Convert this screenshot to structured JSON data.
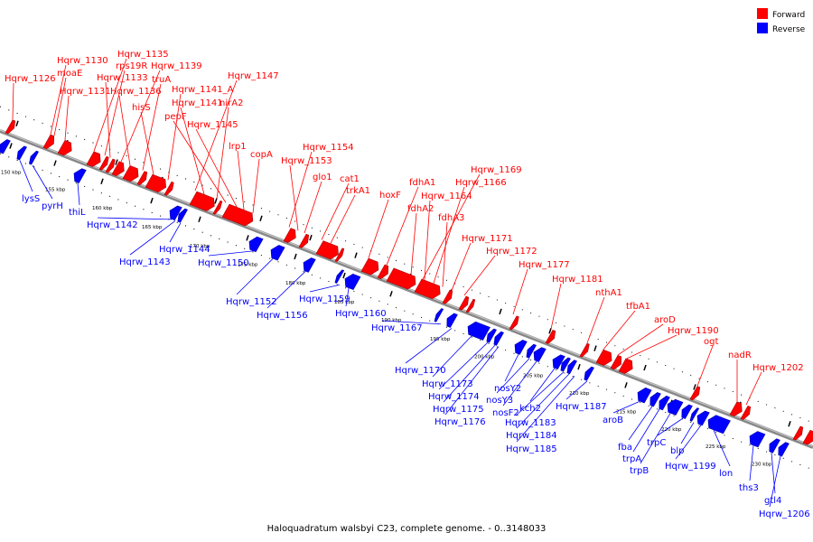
{
  "caption": "Haloquadratum walsbyi C23, complete genome. - 0..3148033",
  "legend": [
    {
      "label": "Forward",
      "color": "#ff0000"
    },
    {
      "label": "Reverse",
      "color": "#0000ff"
    }
  ],
  "colors": {
    "forward": "#ff0000",
    "reverse": "#0000ff",
    "backbone": "#888888"
  },
  "ticks": [
    "150 kbp",
    "155 kbp",
    "160 kbp",
    "165 kbp",
    "170 kbp",
    "175 kbp",
    "180 kbp",
    "185 kbp",
    "190 kbp",
    "195 kbp",
    "200 kbp",
    "205 kbp",
    "210 kbp",
    "215 kbp",
    "220 kbp",
    "225 kbp",
    "230 kbp"
  ],
  "forward_labels": [
    "Hqrw_1126",
    "Hqrw_1130",
    "moaE",
    "Hqrw_1131",
    "Hqrw_1135",
    "rps19R",
    "Hqrw_1133",
    "Hqrw_1139",
    "Hqrw_1136",
    "truA",
    "hisS",
    "Hqrw_1141_A",
    "Hqrw_1147",
    "Hqrw_1141",
    "nirA2",
    "pepF",
    "Hqrw_1145",
    "lrp1",
    "copA",
    "Hqrw_1154",
    "Hqrw_1153",
    "glo1",
    "cat1",
    "trkA1",
    "hoxF",
    "fdhA1",
    "Hqrw_1169",
    "Hqrw_1166",
    "Hqrw_1164",
    "fdhA2",
    "fdhA3",
    "Hqrw_1171",
    "Hqrw_1172",
    "Hqrw_1177",
    "Hqrw_1181",
    "nthA1",
    "tfbA1",
    "aroD",
    "Hqrw_1190",
    "ogt",
    "nadR",
    "Hqrw_1202"
  ],
  "reverse_labels": [
    "lysS",
    "pyrH",
    "thiL",
    "Hqrw_1142",
    "Hqrw_1144",
    "Hqrw_1143",
    "Hqrw_1150",
    "Hqrw_1152",
    "Hqrw_1156",
    "Hqrw_1159",
    "Hqrw_1160",
    "Hqrw_1167",
    "Hqrw_1170",
    "Hqrw_1173",
    "Hqrw_1174",
    "Hqrw_1175",
    "Hqrw_1176",
    "nosY2",
    "nosY3",
    "nosF2",
    "kch2",
    "Hqrw_1183",
    "Hqrw_1184",
    "Hqrw_1185",
    "Hqrw_1187",
    "aroB",
    "fba",
    "trpA",
    "trpB",
    "trpC",
    "blp",
    "Hqrw_1199",
    "lon",
    "ths3",
    "gtl4",
    "Hqrw_1206"
  ]
}
